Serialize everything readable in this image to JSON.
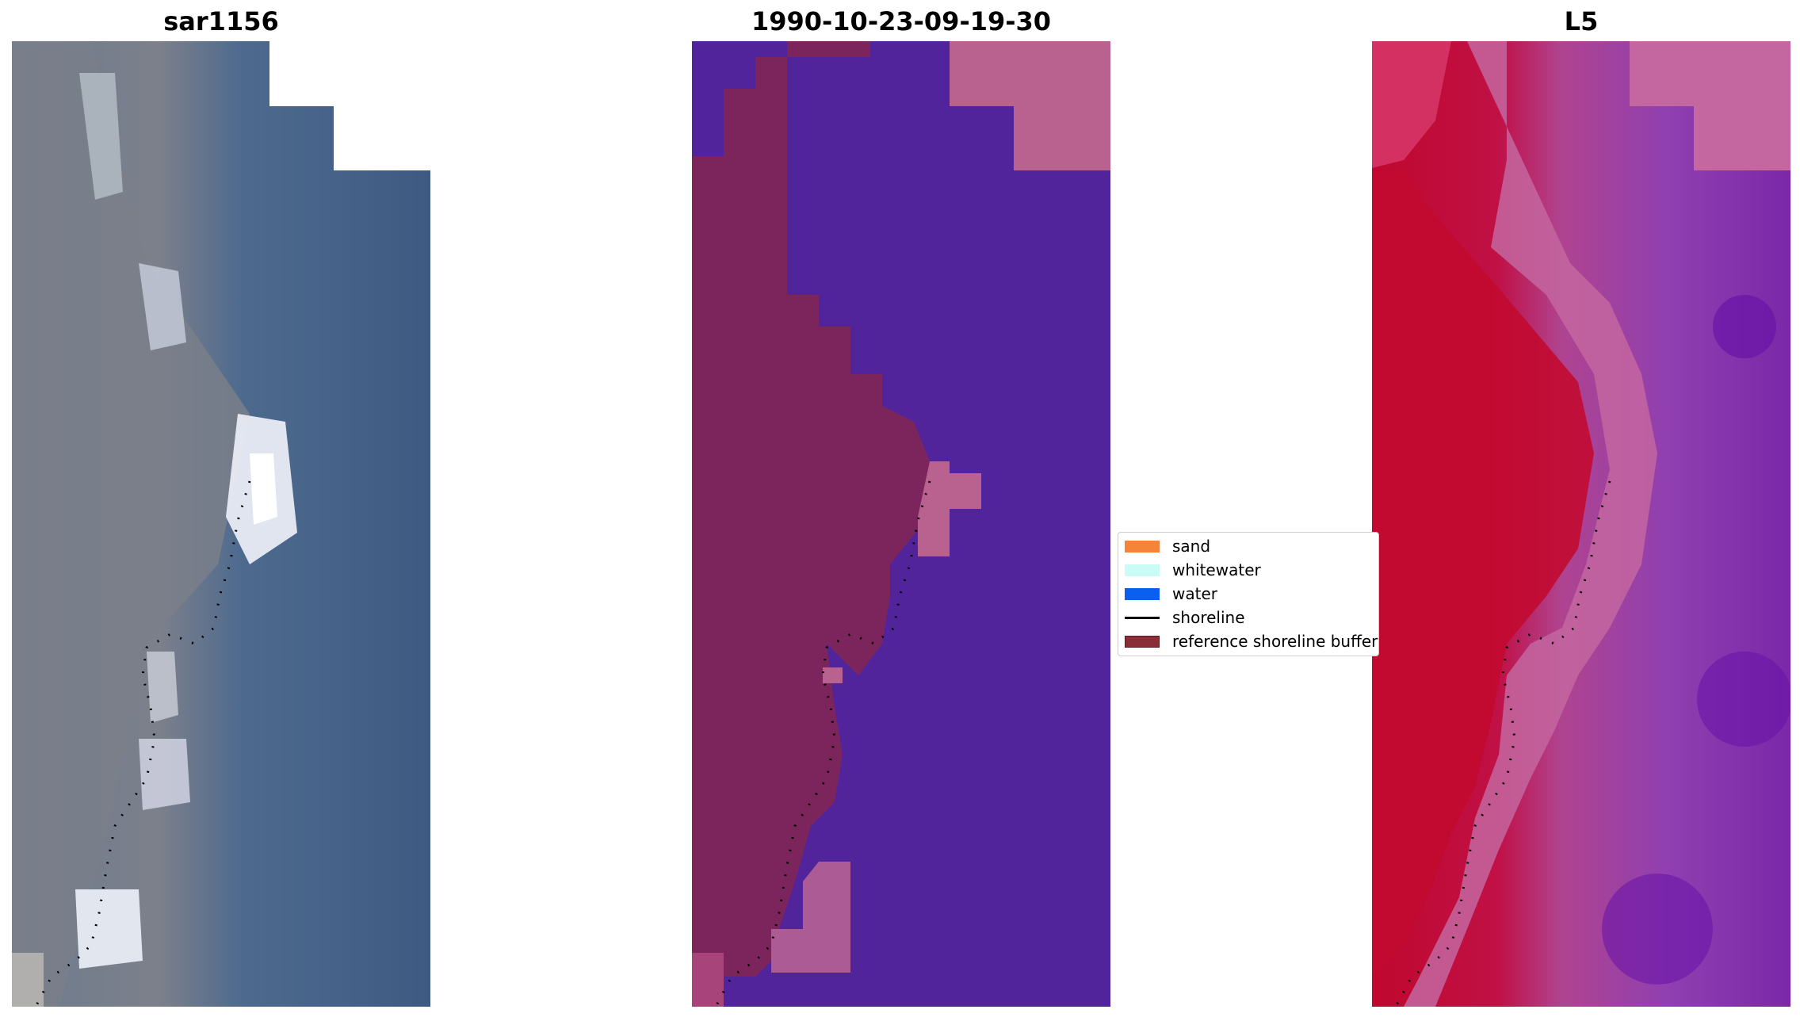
{
  "panels": [
    {
      "title": "sar1156"
    },
    {
      "title": "1990-10-23-09-19-30"
    },
    {
      "title": "L5"
    }
  ],
  "legend": {
    "items": [
      {
        "label": "sand",
        "kind": "patch",
        "color": "#f5833a"
      },
      {
        "label": "whitewater",
        "kind": "patch",
        "color": "#cbfbf7"
      },
      {
        "label": "water",
        "kind": "patch",
        "color": "#0a5ef0"
      },
      {
        "label": "shoreline",
        "kind": "line",
        "color": "#000000"
      },
      {
        "label": "reference shoreline buffer",
        "kind": "patch",
        "color": "#8a2d36"
      }
    ]
  },
  "colors": {
    "rgb_water": "#3f5f86",
    "rgb_land": "#77808e",
    "rgb_surf": "#e6eaf2",
    "class_water": "#52249b",
    "class_buffer": "#7b255c",
    "class_land_pink": "#b9628f",
    "ndwi_land": "#c0082e",
    "ndwi_water": "#8032a8",
    "ndwi_pink": "#c466a0"
  }
}
